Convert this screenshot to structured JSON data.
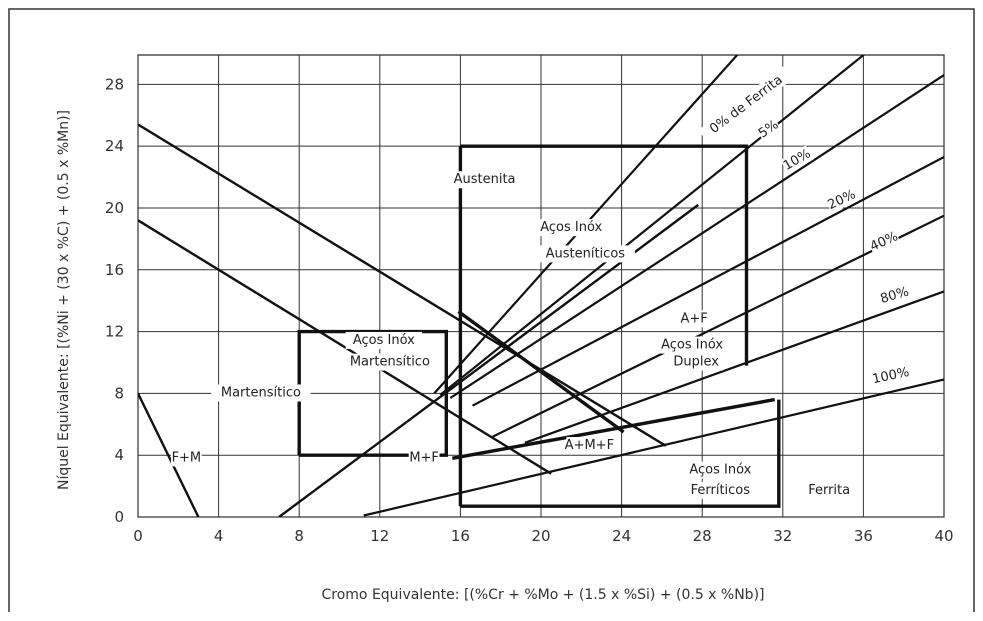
{
  "chart_data": {
    "type": "line",
    "xlabel": "Cromo Equivalente: [(%Cr + %Mo + (1.5 x %Si) + (0.5 x %Nb)]",
    "ylabel": "Níquel Equivalente: [(%Ni + (30 x %C) + (0.5 x %Mn)]",
    "xlim": [
      0,
      40
    ],
    "ylim": [
      0,
      28
    ],
    "x_ticks": [
      "0",
      "4",
      "8",
      "12",
      "16",
      "20",
      "24",
      "28",
      "32",
      "36",
      "40"
    ],
    "y_ticks": [
      "0",
      "4",
      "8",
      "12",
      "16",
      "20",
      "24",
      "28"
    ],
    "grid": true,
    "phase_lines": [
      {
        "name": "Austenita/Martensita",
        "points": [
          [
            0,
            25.4
          ],
          [
            26.2,
            4.6
          ]
        ]
      },
      {
        "name": "Martensita/Ferrita",
        "points": [
          [
            0,
            19.2
          ],
          [
            20.5,
            2.8
          ]
        ]
      },
      {
        "name": "F+M",
        "points": [
          [
            0,
            8
          ],
          [
            3,
            0
          ]
        ]
      },
      {
        "name": "M+F",
        "points": [
          [
            7,
            0
          ],
          [
            27.8,
            20.2
          ]
        ]
      }
    ],
    "ferrite_lines": [
      {
        "label": "0% de Ferrita",
        "points": [
          [
            14.7,
            8.0
          ],
          [
            29.8,
            30.0
          ]
        ]
      },
      {
        "label": "5%",
        "points": [
          [
            15.0,
            7.9
          ],
          [
            36.1,
            30.0
          ]
        ]
      },
      {
        "label": "10%",
        "points": [
          [
            15.5,
            7.7
          ],
          [
            40,
            28.6
          ]
        ]
      },
      {
        "label": "20%",
        "points": [
          [
            16.6,
            7.2
          ],
          [
            40,
            23.3
          ]
        ]
      },
      {
        "label": "40%",
        "points": [
          [
            17.6,
            5.2
          ],
          [
            40,
            19.5
          ]
        ]
      },
      {
        "label": "80%",
        "points": [
          [
            19.2,
            4.8
          ],
          [
            40,
            14.6
          ]
        ]
      },
      {
        "label": "100%",
        "points": [
          [
            11.2,
            0.1
          ],
          [
            40,
            8.9
          ]
        ]
      }
    ],
    "boxes": [
      {
        "name": "Aços Inóx Austeníticos",
        "points": [
          [
            16,
            24
          ],
          [
            30.2,
            24
          ],
          [
            30.2,
            9.8
          ]
        ]
      },
      {
        "name": "Aços Inóx Martensíticos",
        "points": [
          [
            8,
            4
          ],
          [
            8,
            12
          ],
          [
            15.3,
            12
          ],
          [
            15.3,
            4
          ],
          [
            8,
            4
          ]
        ]
      },
      {
        "name": "Aços Inóx Duplex",
        "points": [
          [
            15.6,
            3.8
          ],
          [
            31.6,
            7.6
          ]
        ]
      },
      {
        "name": "Aços Inóx Ferríticos",
        "points": [
          [
            16,
            0.7
          ],
          [
            31.8,
            0.7
          ],
          [
            31.8,
            7.6
          ]
        ]
      }
    ],
    "duplex_boundary_segments": [
      [
        [
          16,
          24
        ],
        [
          16,
          0.7
        ]
      ],
      [
        [
          15.9,
          13.3
        ],
        [
          24.1,
          5.5
        ]
      ]
    ],
    "region_labels": [
      {
        "text": "Austenita",
        "x": 17.2,
        "y": 21.6
      },
      {
        "text": "Aços Inóx",
        "x": 21.5,
        "y": 18.5
      },
      {
        "text": "Austeníticos",
        "x": 22.2,
        "y": 16.8
      },
      {
        "text": "Aços Inóx",
        "x": 12.2,
        "y": 11.2
      },
      {
        "text": "Martensítico",
        "x": 12.5,
        "y": 9.8
      },
      {
        "text": "Martensítico",
        "x": 6.1,
        "y": 7.8
      },
      {
        "text": "A+F",
        "x": 27.6,
        "y": 12.6
      },
      {
        "text": "Aços Inóx",
        "x": 27.5,
        "y": 10.9
      },
      {
        "text": "Duplex",
        "x": 27.7,
        "y": 9.8
      },
      {
        "text": "A+M+F",
        "x": 22.4,
        "y": 4.4
      },
      {
        "text": "M+F",
        "x": 14.2,
        "y": 3.6
      },
      {
        "text": "F+M",
        "x": 2.4,
        "y": 3.6
      },
      {
        "text": "Aços Inóx",
        "x": 28.9,
        "y": 2.8
      },
      {
        "text": "Ferríticos",
        "x": 28.9,
        "y": 1.5
      },
      {
        "text": "Ferrita",
        "x": 34.3,
        "y": 1.5
      }
    ],
    "line_labels": [
      {
        "text": "0% de Ferrita",
        "x": 30.3,
        "y": 26.5,
        "angle": -37
      },
      {
        "text": "5%",
        "x": 31.4,
        "y": 24.9,
        "angle": -35
      },
      {
        "text": "10%",
        "x": 32.8,
        "y": 22.9,
        "angle": -30
      },
      {
        "text": "20%",
        "x": 35.0,
        "y": 20.3,
        "angle": -25
      },
      {
        "text": "40%",
        "x": 37.1,
        "y": 17.6,
        "angle": -24
      },
      {
        "text": "80%",
        "x": 37.6,
        "y": 14.1,
        "angle": -16
      },
      {
        "text": "100%",
        "x": 37.4,
        "y": 8.9,
        "angle": -12
      }
    ]
  }
}
